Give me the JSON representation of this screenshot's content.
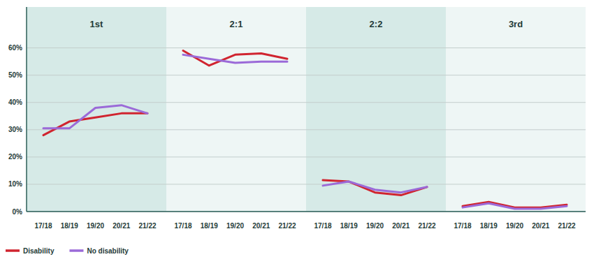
{
  "chart_data": [
    {
      "type": "line",
      "title": "1st",
      "categories": [
        "17/18",
        "18/19",
        "19/20",
        "20/21",
        "21/22"
      ],
      "series": [
        {
          "name": "Disability",
          "color": "#d0242f",
          "values": [
            28,
            33,
            34.5,
            36,
            36
          ]
        },
        {
          "name": "No disability",
          "color": "#9b6ad8",
          "values": [
            30.5,
            30.5,
            38,
            39,
            36
          ]
        }
      ],
      "ylim": [
        0,
        75
      ],
      "yticks": [
        {
          "value": 0,
          "label": "0%"
        },
        {
          "value": 10,
          "label": "10%"
        },
        {
          "value": 20,
          "label": "20%"
        },
        {
          "value": 30,
          "label": "30%"
        },
        {
          "value": 40,
          "label": "40%"
        },
        {
          "value": 50,
          "label": "50%"
        },
        {
          "value": 60,
          "label": "60%"
        }
      ],
      "grid": true,
      "legend": "bottom",
      "tick_labels": true
    },
    {
      "type": "line",
      "title": "2:1",
      "categories": [
        "17/18",
        "18/19",
        "19/20",
        "20/21",
        "21/22"
      ],
      "series": [
        {
          "name": "Disability",
          "color": "#d0242f",
          "values": [
            59,
            53.5,
            57.5,
            58,
            56
          ]
        },
        {
          "name": "No disability",
          "color": "#9b6ad8",
          "values": [
            57.5,
            56,
            54.5,
            55,
            55
          ]
        }
      ],
      "ylim": [
        0,
        75
      ],
      "yticks": [
        0,
        10,
        20,
        30,
        40,
        50,
        60
      ],
      "grid": true,
      "tick_labels": "x"
    },
    {
      "type": "line",
      "title": "2:2",
      "categories": [
        "17/18",
        "18/19",
        "19/20",
        "20/21",
        "21/22"
      ],
      "series": [
        {
          "name": "Disability",
          "color": "#d0242f",
          "values": [
            11.5,
            11,
            7,
            6,
            9
          ]
        },
        {
          "name": "No disability",
          "color": "#9b6ad8",
          "values": [
            9.5,
            11,
            8,
            7,
            9
          ]
        }
      ],
      "ylim": [
        0,
        75
      ],
      "yticks": [
        0,
        10,
        20,
        30,
        40,
        50,
        60
      ],
      "grid": true,
      "tick_labels": "x"
    },
    {
      "type": "line",
      "title": "3rd",
      "categories": [
        "17/18",
        "18/19",
        "19/20",
        "20/21",
        "21/22"
      ],
      "series": [
        {
          "name": "Disability",
          "color": "#d0242f",
          "values": [
            2,
            3.5,
            1.5,
            1.5,
            2.5
          ]
        },
        {
          "name": "No disability",
          "color": "#9b6ad8",
          "values": [
            1.5,
            3,
            1,
            1,
            2
          ]
        }
      ],
      "ylim": [
        0,
        75
      ],
      "yticks": [
        0,
        10,
        20,
        30,
        40,
        50,
        60
      ],
      "grid": true,
      "tick_labels": "x"
    }
  ]
}
